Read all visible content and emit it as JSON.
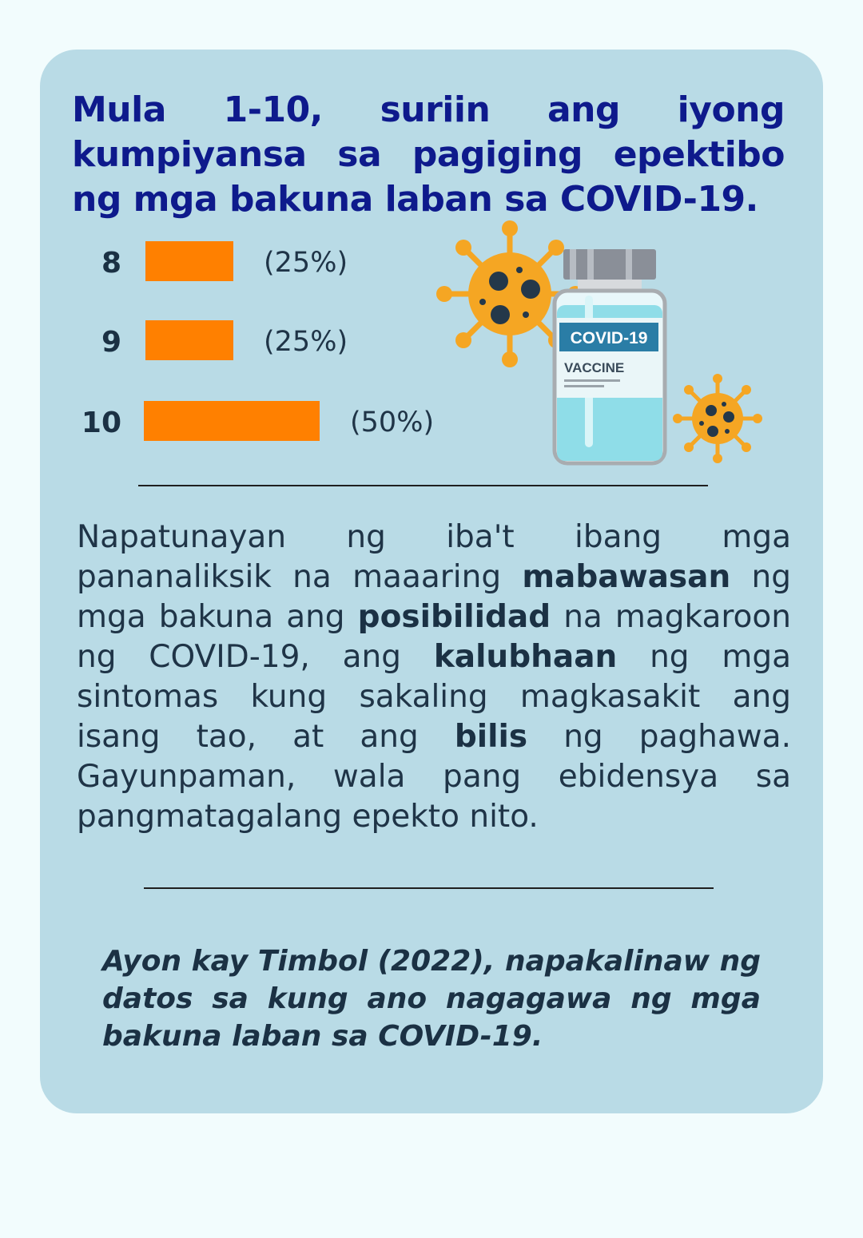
{
  "title": "Mula 1-10, suriin ang iyong kumpiyansa sa pagiging epektibo ng mga bakuna laban sa COVID-19.",
  "chart_data": {
    "type": "bar",
    "orientation": "horizontal",
    "categories": [
      "8",
      "9",
      "10"
    ],
    "values": [
      25,
      25,
      50
    ],
    "value_labels": [
      "(25%)",
      "(25%)",
      "(50%)"
    ],
    "unit": "%",
    "bar_color": "#ff8000",
    "grid": false
  },
  "illustration": {
    "vial_label_top": "COVID-19",
    "vial_label_bottom": "VACCINE",
    "icons": [
      "virus-icon",
      "vaccine-vial-icon"
    ]
  },
  "body": {
    "t1": "Napatunayan ng iba't ibang mga pananaliksik na maaaring ",
    "b1": "mabawasan",
    "t2": " ng mga bakuna ang ",
    "b2": "posibilidad",
    "t3": " na magkaroon ng COVID-19, ang ",
    "b3": "kalubhaan",
    "t4": " ng mga sintomas kung sakaling magkasakit ang isang tao, at ang ",
    "b4": "bilis",
    "t5": " ng paghawa. Gayunpaman, wala pang ebidensya sa pangmatagalang epekto nito."
  },
  "quote": "Ayon kay Timbol (2022), napakalinaw ng datos sa kung ano nagagawa ng mga bakuna laban sa COVID-19.",
  "colors": {
    "background": "#f2fcfd",
    "card": "#b9dbe6",
    "title": "#0e1a8c",
    "text": "#1f3447",
    "bar": "#ff8000",
    "virus": "#f5a623",
    "vial": "#8fdde8"
  }
}
